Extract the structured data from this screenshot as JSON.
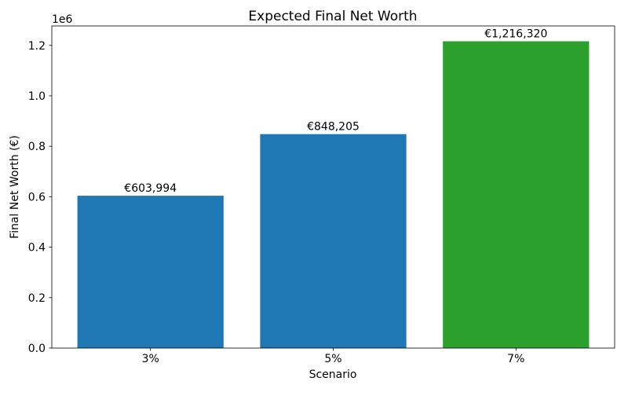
{
  "chart_data": {
    "type": "bar",
    "title": "Expected Final Net Worth",
    "xlabel": "Scenario",
    "ylabel": "Final Net Worth (€)",
    "categories": [
      "3%",
      "5%",
      "7%"
    ],
    "values": [
      603994,
      848205,
      1216320
    ],
    "bar_labels": [
      "€603,994",
      "€848,205",
      "€1,216,320"
    ],
    "bar_colors": [
      "#1f77b4",
      "#1f77b4",
      "#2ca02c"
    ],
    "ylim": [
      0,
      1277136
    ],
    "xlim": [
      -0.54,
      2.54
    ],
    "bar_width": 0.8,
    "yticks": {
      "values": [
        0,
        200000,
        400000,
        600000,
        800000,
        1000000,
        1200000
      ],
      "labels": [
        "0.0",
        "0.2",
        "0.4",
        "0.6",
        "0.8",
        "1.0",
        "1.2"
      ],
      "offset_label": "1e6"
    },
    "grid": false,
    "legend": null,
    "spine_color": "#000000",
    "background_color": "#ffffff"
  }
}
